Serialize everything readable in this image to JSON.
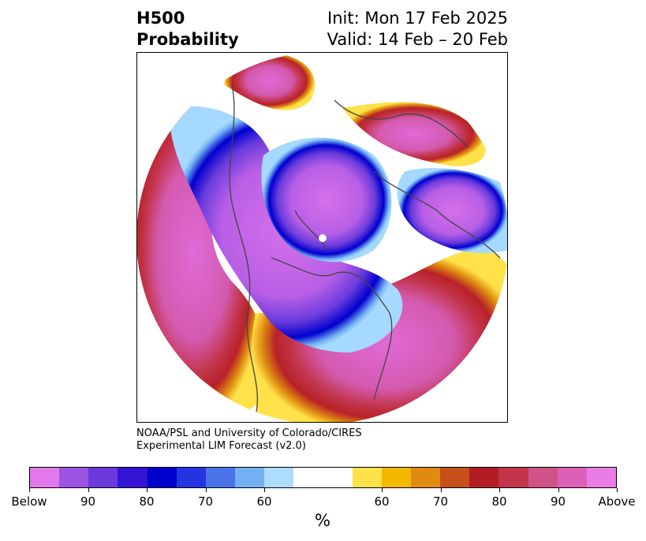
{
  "header": {
    "title_line1": "H500",
    "title_line2": "Probability",
    "init_text": "Init: Mon 17 Feb 2025",
    "valid_text": "Valid: 14 Feb – 20 Feb"
  },
  "map": {
    "projection": "north-polar-stereographic",
    "colors": {
      "below_high": "#d670e8",
      "below_mid": "#6a3bdc",
      "below_low": "#0000cf",
      "below_edge": "#a6d9ff",
      "neutral": "#ffffff",
      "above_edge": "#ffe14a",
      "above_low": "#e08e10",
      "above_mid": "#b82228",
      "above_high": "#d95cae"
    }
  },
  "credit": {
    "line1": "NOAA/PSL and University of Colorado/CIRES",
    "line2": "Experimental LIM Forecast (v2.0)"
  },
  "colorbar": {
    "segments": [
      "#e178ec",
      "#9b55e2",
      "#6b3adc",
      "#3514d5",
      "#0000cc",
      "#2335e0",
      "#4a73ea",
      "#73b1f3",
      "#aedcfc",
      "#ffffff",
      "#ffe24a",
      "#f5b800",
      "#e18a12",
      "#c65018",
      "#b21d23",
      "#c2344a",
      "#cf5386",
      "#dd60b8",
      "#e97de6"
    ],
    "ticks": [
      "Below",
      "90",
      "80",
      "70",
      "60",
      "60",
      "70",
      "80",
      "90",
      "Above"
    ],
    "label": "%"
  }
}
